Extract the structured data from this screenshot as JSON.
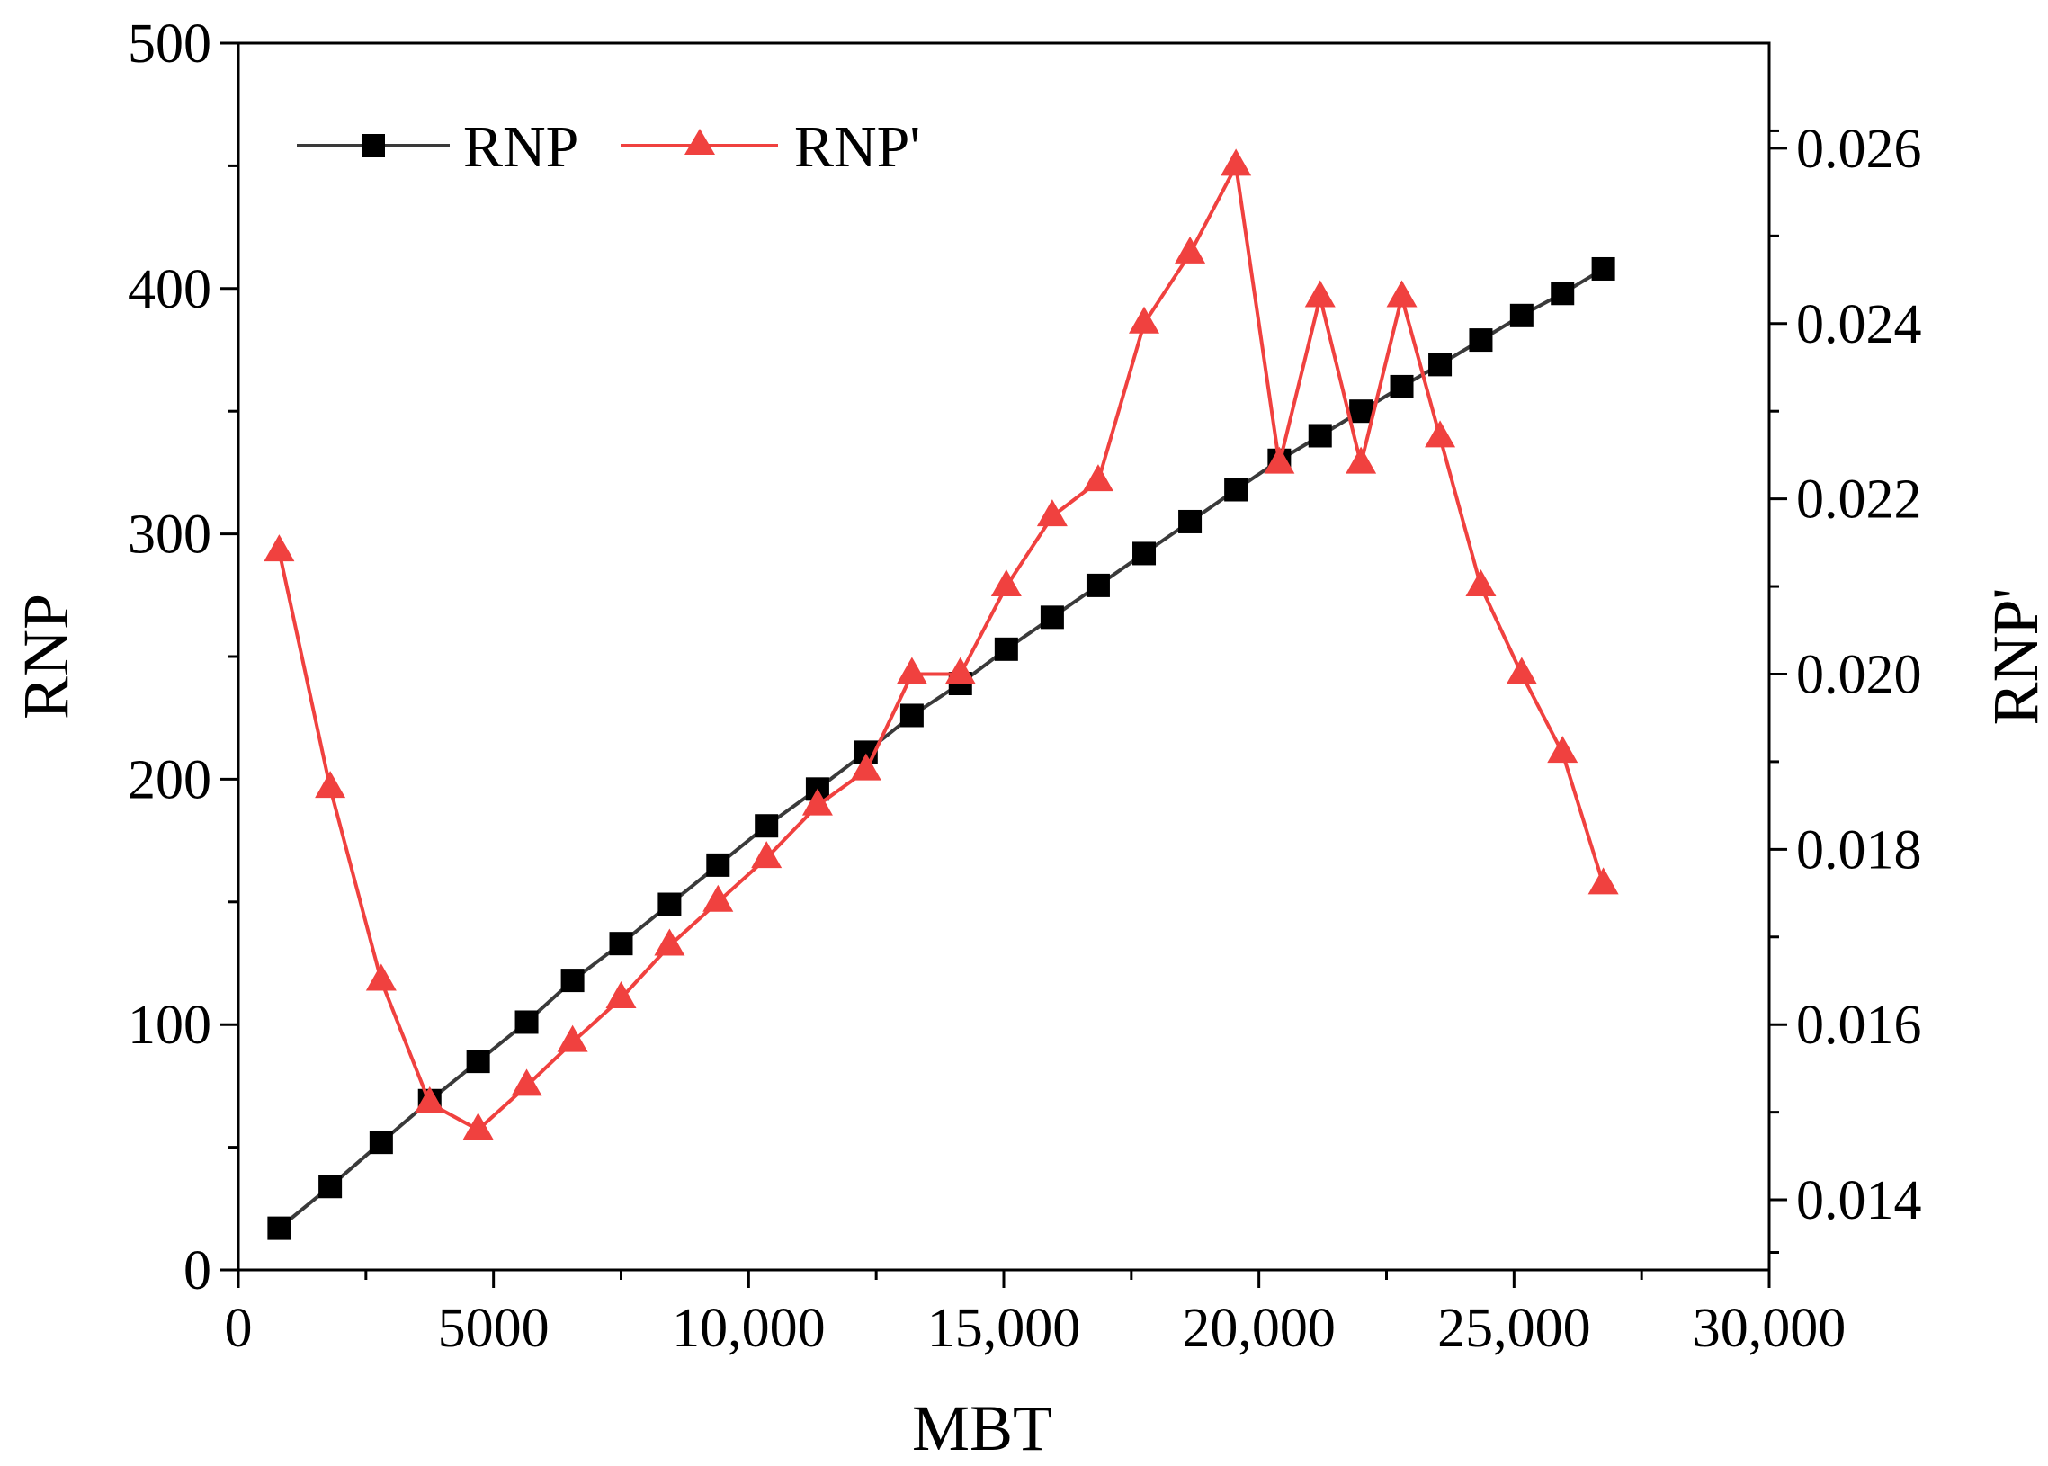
{
  "chart_data": {
    "type": "line",
    "title": "",
    "xlabel": "MBT",
    "ylabel": "RNP",
    "y2label": "RNP'",
    "xlim": [
      0,
      30000
    ],
    "ylim": [
      0,
      500
    ],
    "y2lim": [
      0.0132,
      0.0272
    ],
    "xticks": [
      0,
      5000,
      10000,
      15000,
      20000,
      25000,
      30000
    ],
    "xtick_labels": [
      "0",
      "5000",
      "10,000",
      "15,000",
      "20,000",
      "25,000",
      "30,000"
    ],
    "yticks": [
      0,
      100,
      200,
      300,
      400,
      500
    ],
    "ytick_labels": [
      "0",
      "100",
      "200",
      "300",
      "400",
      "500"
    ],
    "y2ticks": [
      0.014,
      0.016,
      0.018,
      0.02,
      0.022,
      0.024,
      0.026
    ],
    "y2tick_labels": [
      "0.014",
      "0.016",
      "0.018",
      "0.020",
      "0.022",
      "0.024",
      "0.026"
    ],
    "legend_position": "top-left",
    "series": [
      {
        "name": "RNP",
        "axis": "left",
        "color": "#000000",
        "line_color": "#3a3a3a",
        "marker": "square",
        "x": [
          800,
          1800,
          2800,
          3750,
          4700,
          5650,
          6550,
          7500,
          8450,
          9400,
          10350,
          11350,
          12300,
          13200,
          14150,
          15050,
          15950,
          16850,
          17750,
          18650,
          19550,
          20400,
          21200,
          22000,
          22800,
          23550,
          24350,
          25150,
          25950,
          26750
        ],
        "values": [
          17,
          34,
          52,
          69,
          85,
          101,
          118,
          133,
          149,
          165,
          181,
          196,
          211,
          226,
          239,
          253,
          266,
          279,
          292,
          305,
          318,
          330,
          340,
          350,
          360,
          369,
          379,
          389,
          398,
          408
        ]
      },
      {
        "name": "RNP'",
        "axis": "right",
        "color": "#f0413f",
        "line_color": "#f0413f",
        "marker": "triangle",
        "x": [
          800,
          1800,
          2800,
          3750,
          4700,
          5650,
          6550,
          7500,
          8450,
          9400,
          10350,
          11350,
          12300,
          13200,
          14150,
          15050,
          15950,
          16850,
          17750,
          18650,
          19550,
          20400,
          21200,
          22000,
          22800,
          23550,
          24350,
          25150,
          25950,
          26750
        ],
        "values": [
          0.0214,
          0.0187,
          0.0165,
          0.0151,
          0.0148,
          0.0153,
          0.0158,
          0.0163,
          0.0169,
          0.0174,
          0.0179,
          0.0185,
          0.0189,
          0.02,
          0.02,
          0.021,
          0.0218,
          0.0222,
          0.024,
          0.0248,
          0.0258,
          0.0224,
          0.0243,
          0.0224,
          0.0243,
          0.0227,
          0.021,
          0.02,
          0.0191,
          0.0176
        ]
      }
    ]
  }
}
